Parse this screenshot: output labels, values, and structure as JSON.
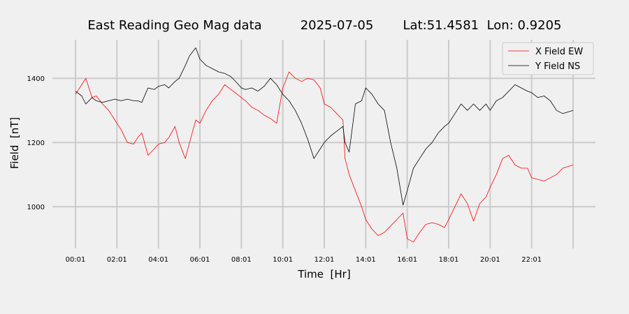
{
  "chart_data": {
    "type": "line",
    "title": "East Reading Geo Mag data",
    "date": "2025-07-05",
    "location": "Lat:51.4581  Lon: 0.9205",
    "xlabel": "Time  [Hr]",
    "ylabel": "Field  [nT]",
    "x_ticks": [
      "00:01",
      "02:01",
      "04:01",
      "06:01",
      "08:01",
      "10:01",
      "12:01",
      "14:01",
      "16:01",
      "18:01",
      "20:01",
      "22:01"
    ],
    "y_ticks": [
      1000,
      1200,
      1400
    ],
    "xlim": [
      0,
      24
    ],
    "ylim": [
      870,
      1520
    ],
    "grid": true,
    "legend_position": "top-right",
    "series": [
      {
        "name": "X Field EW",
        "color": "#ff0000",
        "x": [
          0.0,
          0.3,
          0.5,
          0.8,
          1.0,
          1.3,
          1.6,
          1.9,
          2.2,
          2.5,
          2.8,
          3.0,
          3.2,
          3.5,
          3.8,
          4.0,
          4.3,
          4.5,
          4.8,
          5.0,
          5.3,
          5.5,
          5.8,
          6.0,
          6.3,
          6.6,
          6.9,
          7.2,
          7.5,
          7.8,
          8.0,
          8.2,
          8.5,
          8.8,
          9.1,
          9.4,
          9.7,
          10.0,
          10.3,
          10.6,
          10.9,
          11.2,
          11.5,
          11.8,
          12.0,
          12.3,
          12.6,
          12.9,
          13.0,
          13.2,
          13.5,
          13.8,
          14.0,
          14.3,
          14.6,
          14.9,
          15.2,
          15.5,
          15.8,
          16.0,
          16.3,
          16.6,
          16.9,
          17.2,
          17.5,
          17.8,
          18.0,
          18.3,
          18.6,
          18.9,
          19.2,
          19.5,
          19.8,
          20.0,
          20.3,
          20.6,
          20.9,
          21.2,
          21.5,
          21.8,
          22.0,
          22.3,
          22.6,
          22.9,
          23.2,
          23.5,
          24.0
        ],
        "values": [
          1350,
          1380,
          1400,
          1340,
          1345,
          1320,
          1300,
          1270,
          1240,
          1200,
          1195,
          1215,
          1230,
          1160,
          1180,
          1195,
          1200,
          1215,
          1250,
          1200,
          1150,
          1200,
          1270,
          1260,
          1300,
          1330,
          1350,
          1380,
          1365,
          1350,
          1340,
          1330,
          1310,
          1300,
          1285,
          1275,
          1260,
          1370,
          1420,
          1400,
          1390,
          1400,
          1395,
          1370,
          1320,
          1310,
          1290,
          1270,
          1150,
          1100,
          1050,
          1000,
          960,
          930,
          910,
          920,
          940,
          960,
          980,
          900,
          890,
          920,
          945,
          950,
          945,
          935,
          960,
          1000,
          1040,
          1010,
          955,
          1010,
          1030,
          1060,
          1100,
          1150,
          1160,
          1130,
          1120,
          1120,
          1090,
          1085,
          1080,
          1090,
          1100,
          1120,
          1130
        ]
      },
      {
        "name": "Y Field NS",
        "color": "#000000",
        "x": [
          0.0,
          0.3,
          0.5,
          0.8,
          1.0,
          1.3,
          1.6,
          1.9,
          2.2,
          2.5,
          2.8,
          3.0,
          3.2,
          3.5,
          3.8,
          4.0,
          4.3,
          4.5,
          4.8,
          5.0,
          5.3,
          5.5,
          5.8,
          6.0,
          6.3,
          6.6,
          6.9,
          7.2,
          7.5,
          7.8,
          8.0,
          8.2,
          8.5,
          8.8,
          9.1,
          9.4,
          9.7,
          10.0,
          10.3,
          10.6,
          10.9,
          11.2,
          11.5,
          11.8,
          12.0,
          12.3,
          12.6,
          12.9,
          13.0,
          13.2,
          13.5,
          13.8,
          14.0,
          14.3,
          14.6,
          14.9,
          15.2,
          15.5,
          15.8,
          16.0,
          16.3,
          16.6,
          16.9,
          17.2,
          17.5,
          17.8,
          18.0,
          18.3,
          18.6,
          18.9,
          19.2,
          19.5,
          19.8,
          20.0,
          20.3,
          20.6,
          20.9,
          21.2,
          21.5,
          21.8,
          22.0,
          22.3,
          22.6,
          22.9,
          23.2,
          23.5,
          24.0
        ],
        "values": [
          1360,
          1345,
          1320,
          1340,
          1330,
          1325,
          1330,
          1335,
          1330,
          1335,
          1330,
          1330,
          1325,
          1370,
          1365,
          1375,
          1380,
          1370,
          1390,
          1400,
          1440,
          1470,
          1495,
          1460,
          1440,
          1430,
          1420,
          1415,
          1405,
          1385,
          1370,
          1365,
          1370,
          1360,
          1375,
          1400,
          1380,
          1350,
          1330,
          1300,
          1260,
          1210,
          1150,
          1180,
          1200,
          1220,
          1235,
          1250,
          1200,
          1170,
          1320,
          1330,
          1370,
          1350,
          1320,
          1300,
          1200,
          1120,
          1005,
          1050,
          1120,
          1150,
          1180,
          1200,
          1230,
          1250,
          1260,
          1290,
          1320,
          1300,
          1320,
          1300,
          1320,
          1300,
          1330,
          1340,
          1360,
          1380,
          1370,
          1360,
          1355,
          1340,
          1345,
          1330,
          1300,
          1290,
          1300
        ]
      }
    ]
  }
}
